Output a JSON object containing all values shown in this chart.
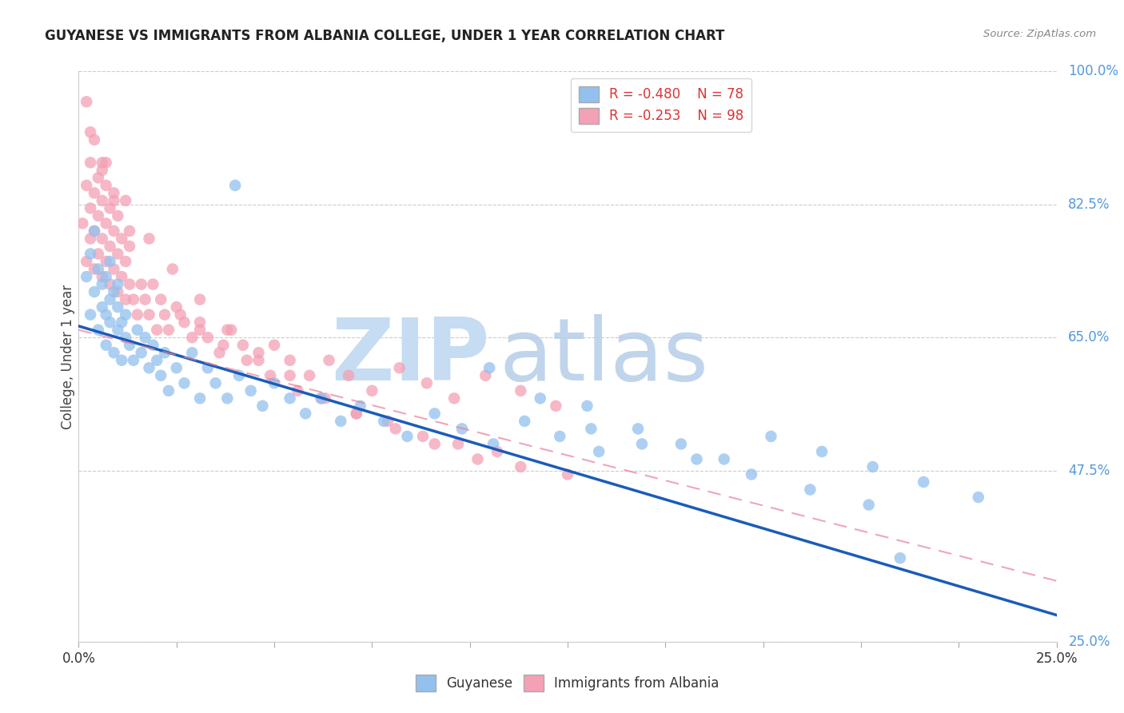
{
  "title": "GUYANESE VS IMMIGRANTS FROM ALBANIA COLLEGE, UNDER 1 YEAR CORRELATION CHART",
  "source": "Source: ZipAtlas.com",
  "ylabel": "College, Under 1 year",
  "x_min": 0.0,
  "x_max": 0.25,
  "y_min": 0.25,
  "y_max": 1.0,
  "x_tick_pos": [
    0.0,
    0.025,
    0.05,
    0.075,
    0.1,
    0.125,
    0.15,
    0.175,
    0.2,
    0.225,
    0.25
  ],
  "x_tick_labels": [
    "0.0%",
    "",
    "",
    "",
    "",
    "",
    "",
    "",
    "",
    "",
    "25.0%"
  ],
  "y_ticks_right": [
    0.25,
    0.475,
    0.65,
    0.825,
    1.0
  ],
  "y_tick_labels_right": [
    "25.0%",
    "47.5%",
    "65.0%",
    "82.5%",
    "100.0%"
  ],
  "legend_R1": "R = -0.480",
  "legend_N1": "N = 78",
  "legend_R2": "R = -0.253",
  "legend_N2": "N = 98",
  "color_blue": "#92C1EE",
  "color_pink": "#F4A0B5",
  "trend_blue": "#1A5CB8",
  "trend_pink": "#E88098",
  "watermark_zip_color": "#C8DCF0",
  "watermark_atlas_color": "#AACCE8",
  "background": "#FFFFFF",
  "guyanese_x": [
    0.002,
    0.003,
    0.003,
    0.004,
    0.004,
    0.005,
    0.005,
    0.006,
    0.006,
    0.007,
    0.007,
    0.007,
    0.008,
    0.008,
    0.008,
    0.009,
    0.009,
    0.01,
    0.01,
    0.01,
    0.011,
    0.011,
    0.012,
    0.012,
    0.013,
    0.014,
    0.015,
    0.016,
    0.017,
    0.018,
    0.019,
    0.02,
    0.021,
    0.022,
    0.023,
    0.025,
    0.027,
    0.029,
    0.031,
    0.033,
    0.035,
    0.038,
    0.041,
    0.044,
    0.047,
    0.05,
    0.054,
    0.058,
    0.062,
    0.067,
    0.072,
    0.078,
    0.084,
    0.091,
    0.098,
    0.106,
    0.114,
    0.123,
    0.133,
    0.143,
    0.154,
    0.165,
    0.177,
    0.19,
    0.203,
    0.216,
    0.23,
    0.105,
    0.118,
    0.131,
    0.144,
    0.158,
    0.172,
    0.187,
    0.202,
    0.04,
    0.13,
    0.21
  ],
  "guyanese_y": [
    0.73,
    0.68,
    0.76,
    0.71,
    0.79,
    0.66,
    0.74,
    0.69,
    0.72,
    0.64,
    0.68,
    0.73,
    0.67,
    0.7,
    0.75,
    0.63,
    0.71,
    0.66,
    0.69,
    0.72,
    0.62,
    0.67,
    0.65,
    0.68,
    0.64,
    0.62,
    0.66,
    0.63,
    0.65,
    0.61,
    0.64,
    0.62,
    0.6,
    0.63,
    0.58,
    0.61,
    0.59,
    0.63,
    0.57,
    0.61,
    0.59,
    0.57,
    0.6,
    0.58,
    0.56,
    0.59,
    0.57,
    0.55,
    0.57,
    0.54,
    0.56,
    0.54,
    0.52,
    0.55,
    0.53,
    0.51,
    0.54,
    0.52,
    0.5,
    0.53,
    0.51,
    0.49,
    0.52,
    0.5,
    0.48,
    0.46,
    0.44,
    0.61,
    0.57,
    0.53,
    0.51,
    0.49,
    0.47,
    0.45,
    0.43,
    0.85,
    0.56,
    0.36
  ],
  "albania_x": [
    0.001,
    0.002,
    0.002,
    0.003,
    0.003,
    0.003,
    0.004,
    0.004,
    0.004,
    0.005,
    0.005,
    0.005,
    0.006,
    0.006,
    0.006,
    0.006,
    0.007,
    0.007,
    0.007,
    0.008,
    0.008,
    0.008,
    0.009,
    0.009,
    0.009,
    0.01,
    0.01,
    0.01,
    0.011,
    0.011,
    0.012,
    0.012,
    0.013,
    0.013,
    0.014,
    0.015,
    0.016,
    0.017,
    0.018,
    0.019,
    0.02,
    0.021,
    0.022,
    0.023,
    0.025,
    0.027,
    0.029,
    0.031,
    0.033,
    0.036,
    0.039,
    0.042,
    0.046,
    0.05,
    0.054,
    0.059,
    0.064,
    0.069,
    0.075,
    0.082,
    0.089,
    0.096,
    0.104,
    0.113,
    0.122,
    0.026,
    0.031,
    0.037,
    0.043,
    0.049,
    0.056,
    0.063,
    0.071,
    0.079,
    0.088,
    0.097,
    0.107,
    0.003,
    0.007,
    0.012,
    0.018,
    0.024,
    0.031,
    0.038,
    0.046,
    0.054,
    0.062,
    0.071,
    0.081,
    0.091,
    0.102,
    0.113,
    0.125,
    0.002,
    0.004,
    0.006,
    0.009,
    0.013
  ],
  "albania_y": [
    0.8,
    0.85,
    0.75,
    0.78,
    0.82,
    0.88,
    0.74,
    0.79,
    0.84,
    0.76,
    0.81,
    0.86,
    0.73,
    0.78,
    0.83,
    0.88,
    0.75,
    0.8,
    0.85,
    0.72,
    0.77,
    0.82,
    0.74,
    0.79,
    0.84,
    0.71,
    0.76,
    0.81,
    0.73,
    0.78,
    0.7,
    0.75,
    0.72,
    0.77,
    0.7,
    0.68,
    0.72,
    0.7,
    0.68,
    0.72,
    0.66,
    0.7,
    0.68,
    0.66,
    0.69,
    0.67,
    0.65,
    0.67,
    0.65,
    0.63,
    0.66,
    0.64,
    0.62,
    0.64,
    0.62,
    0.6,
    0.62,
    0.6,
    0.58,
    0.61,
    0.59,
    0.57,
    0.6,
    0.58,
    0.56,
    0.68,
    0.66,
    0.64,
    0.62,
    0.6,
    0.58,
    0.57,
    0.55,
    0.54,
    0.52,
    0.51,
    0.5,
    0.92,
    0.88,
    0.83,
    0.78,
    0.74,
    0.7,
    0.66,
    0.63,
    0.6,
    0.57,
    0.55,
    0.53,
    0.51,
    0.49,
    0.48,
    0.47,
    0.96,
    0.91,
    0.87,
    0.83,
    0.79
  ],
  "trend_blue_x0": 0.0,
  "trend_blue_y0": 0.665,
  "trend_blue_x1": 0.25,
  "trend_blue_y1": 0.285,
  "trend_pink_x0": 0.0,
  "trend_pink_y0": 0.66,
  "trend_pink_x1": 0.25,
  "trend_pink_y1": 0.33
}
